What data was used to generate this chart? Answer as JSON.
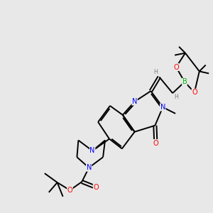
{
  "bg_color": "#e8e8e8",
  "atom_colors": {
    "C": "#000000",
    "N": "#0000ff",
    "O": "#ff0000",
    "B": "#00bb00",
    "H": "#808080"
  },
  "bond_color": "#000000",
  "bond_width": 1.4,
  "dbo": 0.07,
  "figsize": [
    3.0,
    3.0
  ],
  "dpi": 100
}
